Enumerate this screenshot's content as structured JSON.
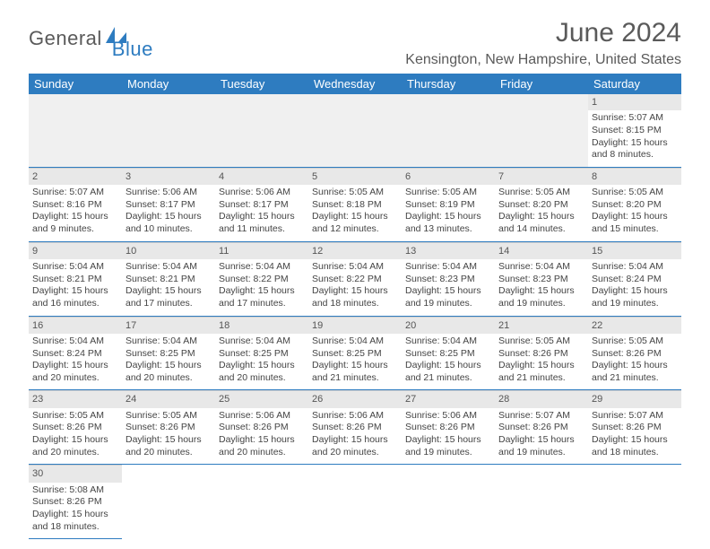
{
  "logo": {
    "part1": "General",
    "part2": "Blue"
  },
  "title": "June 2024",
  "location": "Kensington, New Hampshire, United States",
  "colors": {
    "header_bg": "#2e7cc0",
    "divider": "#2e7cc0",
    "daynum_bg": "#e8e8e8",
    "text": "#444"
  },
  "layout": {
    "columns": 7,
    "rows": 6,
    "first_day_column": 6
  },
  "weekdays": [
    "Sunday",
    "Monday",
    "Tuesday",
    "Wednesday",
    "Thursday",
    "Friday",
    "Saturday"
  ],
  "days": [
    {
      "n": "1",
      "sunrise": "Sunrise: 5:07 AM",
      "sunset": "Sunset: 8:15 PM",
      "daylight1": "Daylight: 15 hours",
      "daylight2": "and 8 minutes."
    },
    {
      "n": "2",
      "sunrise": "Sunrise: 5:07 AM",
      "sunset": "Sunset: 8:16 PM",
      "daylight1": "Daylight: 15 hours",
      "daylight2": "and 9 minutes."
    },
    {
      "n": "3",
      "sunrise": "Sunrise: 5:06 AM",
      "sunset": "Sunset: 8:17 PM",
      "daylight1": "Daylight: 15 hours",
      "daylight2": "and 10 minutes."
    },
    {
      "n": "4",
      "sunrise": "Sunrise: 5:06 AM",
      "sunset": "Sunset: 8:17 PM",
      "daylight1": "Daylight: 15 hours",
      "daylight2": "and 11 minutes."
    },
    {
      "n": "5",
      "sunrise": "Sunrise: 5:05 AM",
      "sunset": "Sunset: 8:18 PM",
      "daylight1": "Daylight: 15 hours",
      "daylight2": "and 12 minutes."
    },
    {
      "n": "6",
      "sunrise": "Sunrise: 5:05 AM",
      "sunset": "Sunset: 8:19 PM",
      "daylight1": "Daylight: 15 hours",
      "daylight2": "and 13 minutes."
    },
    {
      "n": "7",
      "sunrise": "Sunrise: 5:05 AM",
      "sunset": "Sunset: 8:20 PM",
      "daylight1": "Daylight: 15 hours",
      "daylight2": "and 14 minutes."
    },
    {
      "n": "8",
      "sunrise": "Sunrise: 5:05 AM",
      "sunset": "Sunset: 8:20 PM",
      "daylight1": "Daylight: 15 hours",
      "daylight2": "and 15 minutes."
    },
    {
      "n": "9",
      "sunrise": "Sunrise: 5:04 AM",
      "sunset": "Sunset: 8:21 PM",
      "daylight1": "Daylight: 15 hours",
      "daylight2": "and 16 minutes."
    },
    {
      "n": "10",
      "sunrise": "Sunrise: 5:04 AM",
      "sunset": "Sunset: 8:21 PM",
      "daylight1": "Daylight: 15 hours",
      "daylight2": "and 17 minutes."
    },
    {
      "n": "11",
      "sunrise": "Sunrise: 5:04 AM",
      "sunset": "Sunset: 8:22 PM",
      "daylight1": "Daylight: 15 hours",
      "daylight2": "and 17 minutes."
    },
    {
      "n": "12",
      "sunrise": "Sunrise: 5:04 AM",
      "sunset": "Sunset: 8:22 PM",
      "daylight1": "Daylight: 15 hours",
      "daylight2": "and 18 minutes."
    },
    {
      "n": "13",
      "sunrise": "Sunrise: 5:04 AM",
      "sunset": "Sunset: 8:23 PM",
      "daylight1": "Daylight: 15 hours",
      "daylight2": "and 19 minutes."
    },
    {
      "n": "14",
      "sunrise": "Sunrise: 5:04 AM",
      "sunset": "Sunset: 8:23 PM",
      "daylight1": "Daylight: 15 hours",
      "daylight2": "and 19 minutes."
    },
    {
      "n": "15",
      "sunrise": "Sunrise: 5:04 AM",
      "sunset": "Sunset: 8:24 PM",
      "daylight1": "Daylight: 15 hours",
      "daylight2": "and 19 minutes."
    },
    {
      "n": "16",
      "sunrise": "Sunrise: 5:04 AM",
      "sunset": "Sunset: 8:24 PM",
      "daylight1": "Daylight: 15 hours",
      "daylight2": "and 20 minutes."
    },
    {
      "n": "17",
      "sunrise": "Sunrise: 5:04 AM",
      "sunset": "Sunset: 8:25 PM",
      "daylight1": "Daylight: 15 hours",
      "daylight2": "and 20 minutes."
    },
    {
      "n": "18",
      "sunrise": "Sunrise: 5:04 AM",
      "sunset": "Sunset: 8:25 PM",
      "daylight1": "Daylight: 15 hours",
      "daylight2": "and 20 minutes."
    },
    {
      "n": "19",
      "sunrise": "Sunrise: 5:04 AM",
      "sunset": "Sunset: 8:25 PM",
      "daylight1": "Daylight: 15 hours",
      "daylight2": "and 21 minutes."
    },
    {
      "n": "20",
      "sunrise": "Sunrise: 5:04 AM",
      "sunset": "Sunset: 8:25 PM",
      "daylight1": "Daylight: 15 hours",
      "daylight2": "and 21 minutes."
    },
    {
      "n": "21",
      "sunrise": "Sunrise: 5:05 AM",
      "sunset": "Sunset: 8:26 PM",
      "daylight1": "Daylight: 15 hours",
      "daylight2": "and 21 minutes."
    },
    {
      "n": "22",
      "sunrise": "Sunrise: 5:05 AM",
      "sunset": "Sunset: 8:26 PM",
      "daylight1": "Daylight: 15 hours",
      "daylight2": "and 21 minutes."
    },
    {
      "n": "23",
      "sunrise": "Sunrise: 5:05 AM",
      "sunset": "Sunset: 8:26 PM",
      "daylight1": "Daylight: 15 hours",
      "daylight2": "and 20 minutes."
    },
    {
      "n": "24",
      "sunrise": "Sunrise: 5:05 AM",
      "sunset": "Sunset: 8:26 PM",
      "daylight1": "Daylight: 15 hours",
      "daylight2": "and 20 minutes."
    },
    {
      "n": "25",
      "sunrise": "Sunrise: 5:06 AM",
      "sunset": "Sunset: 8:26 PM",
      "daylight1": "Daylight: 15 hours",
      "daylight2": "and 20 minutes."
    },
    {
      "n": "26",
      "sunrise": "Sunrise: 5:06 AM",
      "sunset": "Sunset: 8:26 PM",
      "daylight1": "Daylight: 15 hours",
      "daylight2": "and 20 minutes."
    },
    {
      "n": "27",
      "sunrise": "Sunrise: 5:06 AM",
      "sunset": "Sunset: 8:26 PM",
      "daylight1": "Daylight: 15 hours",
      "daylight2": "and 19 minutes."
    },
    {
      "n": "28",
      "sunrise": "Sunrise: 5:07 AM",
      "sunset": "Sunset: 8:26 PM",
      "daylight1": "Daylight: 15 hours",
      "daylight2": "and 19 minutes."
    },
    {
      "n": "29",
      "sunrise": "Sunrise: 5:07 AM",
      "sunset": "Sunset: 8:26 PM",
      "daylight1": "Daylight: 15 hours",
      "daylight2": "and 18 minutes."
    },
    {
      "n": "30",
      "sunrise": "Sunrise: 5:08 AM",
      "sunset": "Sunset: 8:26 PM",
      "daylight1": "Daylight: 15 hours",
      "daylight2": "and 18 minutes."
    }
  ]
}
